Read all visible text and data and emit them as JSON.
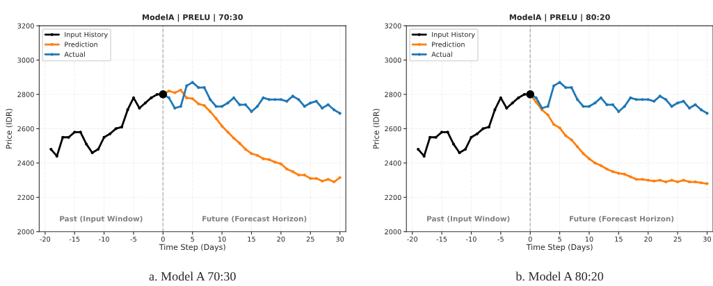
{
  "chart_data": [
    {
      "type": "line",
      "title": "ModelA | PRELU | 70:30",
      "xlabel": "Time Step (Days)",
      "ylabel": "Price (IDR)",
      "xlim": [
        -21,
        31
      ],
      "xticks": [
        -20,
        -15,
        -10,
        -5,
        0,
        5,
        10,
        15,
        20,
        25,
        30
      ],
      "ylim": [
        2000,
        3200
      ],
      "yticks": [
        2000,
        2200,
        2400,
        2600,
        2800,
        3000,
        3200
      ],
      "grid": true,
      "legend": "top left",
      "marker": "circle",
      "line_style": "solid",
      "ref_lines": [
        {
          "axis": "x",
          "value": 0,
          "color": "#b0b0b0",
          "line_style": "dashed"
        }
      ],
      "annotations": [
        "Past (Input Window)",
        "Future (Forecast Horizon)",
        "a. Model A 70:30"
      ],
      "series": [
        {
          "name": "Input History",
          "color": "#000000",
          "x": [
            -19,
            -18,
            -17,
            -16,
            -15,
            -14,
            -13,
            -12,
            -11,
            -10,
            -9,
            -8,
            -7,
            -6,
            -5,
            -4,
            -3,
            -2,
            -1,
            0
          ],
          "values": [
            2480,
            2440,
            2550,
            2550,
            2580,
            2580,
            2510,
            2460,
            2480,
            2550,
            2570,
            2600,
            2610,
            2710,
            2780,
            2720,
            2750,
            2780,
            2800,
            2800
          ]
        },
        {
          "name": "Prediction",
          "color": "#ff7f0e",
          "x": [
            0,
            1,
            2,
            3,
            4,
            5,
            6,
            7,
            8,
            9,
            10,
            11,
            12,
            13,
            14,
            15,
            16,
            17,
            18,
            19,
            20,
            21,
            22,
            23,
            24,
            25,
            26,
            27,
            28,
            29,
            30
          ],
          "values": [
            2800,
            2820,
            2810,
            2825,
            2780,
            2775,
            2745,
            2735,
            2700,
            2660,
            2615,
            2580,
            2545,
            2515,
            2480,
            2455,
            2445,
            2425,
            2420,
            2405,
            2395,
            2365,
            2350,
            2330,
            2330,
            2310,
            2310,
            2295,
            2305,
            2290,
            2315
          ]
        },
        {
          "name": "Actual",
          "color": "#1f77b4",
          "x": [
            0,
            1,
            2,
            3,
            4,
            5,
            6,
            7,
            8,
            9,
            10,
            11,
            12,
            13,
            14,
            15,
            16,
            17,
            18,
            19,
            20,
            21,
            22,
            23,
            24,
            25,
            26,
            27,
            28,
            29,
            30
          ],
          "values": [
            2800,
            2780,
            2720,
            2730,
            2850,
            2870,
            2840,
            2840,
            2770,
            2730,
            2730,
            2750,
            2780,
            2740,
            2740,
            2700,
            2730,
            2780,
            2770,
            2770,
            2770,
            2760,
            2790,
            2770,
            2730,
            2750,
            2760,
            2720,
            2740,
            2710,
            2690
          ]
        },
        {
          "type": "scatter",
          "color": "#000000",
          "x": [
            0
          ],
          "values": [
            2800
          ]
        }
      ]
    },
    {
      "type": "line",
      "title": "ModelA | PRELU | 80:20",
      "xlabel": "Time Step (Days)",
      "ylabel": "Price (IDR)",
      "xlim": [
        -21,
        31
      ],
      "xticks": [
        -20,
        -15,
        -10,
        -5,
        0,
        5,
        10,
        15,
        20,
        25,
        30
      ],
      "ylim": [
        2000,
        3200
      ],
      "yticks": [
        2000,
        2200,
        2400,
        2600,
        2800,
        3000,
        3200
      ],
      "grid": true,
      "legend": "top left",
      "marker": "circle",
      "line_style": "solid",
      "ref_lines": [
        {
          "axis": "x",
          "value": 0,
          "color": "#b0b0b0",
          "line_style": "dashed"
        }
      ],
      "annotations": [
        "Past (Input Window)",
        "Future (Forecast Horizon)",
        "b. Model A 80:20"
      ],
      "series": [
        {
          "name": "Input History",
          "color": "#000000",
          "x": [
            -19,
            -18,
            -17,
            -16,
            -15,
            -14,
            -13,
            -12,
            -11,
            -10,
            -9,
            -8,
            -7,
            -6,
            -5,
            -4,
            -3,
            -2,
            -1,
            0
          ],
          "values": [
            2480,
            2440,
            2550,
            2550,
            2580,
            2580,
            2510,
            2460,
            2480,
            2550,
            2570,
            2600,
            2610,
            2710,
            2780,
            2720,
            2750,
            2780,
            2800,
            2800
          ]
        },
        {
          "name": "Prediction",
          "color": "#ff7f0e",
          "x": [
            0,
            1,
            2,
            3,
            4,
            5,
            6,
            7,
            8,
            9,
            10,
            11,
            12,
            13,
            14,
            15,
            16,
            17,
            18,
            19,
            20,
            21,
            22,
            23,
            24,
            25,
            26,
            27,
            28,
            29,
            30
          ],
          "values": [
            2800,
            2755,
            2710,
            2680,
            2625,
            2605,
            2560,
            2535,
            2495,
            2455,
            2425,
            2400,
            2385,
            2365,
            2350,
            2340,
            2335,
            2320,
            2305,
            2305,
            2300,
            2295,
            2300,
            2290,
            2300,
            2290,
            2300,
            2290,
            2290,
            2285,
            2280
          ]
        },
        {
          "name": "Actual",
          "color": "#1f77b4",
          "x": [
            0,
            1,
            2,
            3,
            4,
            5,
            6,
            7,
            8,
            9,
            10,
            11,
            12,
            13,
            14,
            15,
            16,
            17,
            18,
            19,
            20,
            21,
            22,
            23,
            24,
            25,
            26,
            27,
            28,
            29,
            30
          ],
          "values": [
            2800,
            2780,
            2720,
            2730,
            2850,
            2870,
            2840,
            2840,
            2770,
            2730,
            2730,
            2750,
            2780,
            2740,
            2740,
            2700,
            2730,
            2780,
            2770,
            2770,
            2770,
            2760,
            2790,
            2770,
            2730,
            2750,
            2760,
            2720,
            2740,
            2710,
            2690
          ]
        },
        {
          "type": "scatter",
          "color": "#000000",
          "x": [
            0
          ],
          "values": [
            2800
          ]
        }
      ]
    }
  ]
}
